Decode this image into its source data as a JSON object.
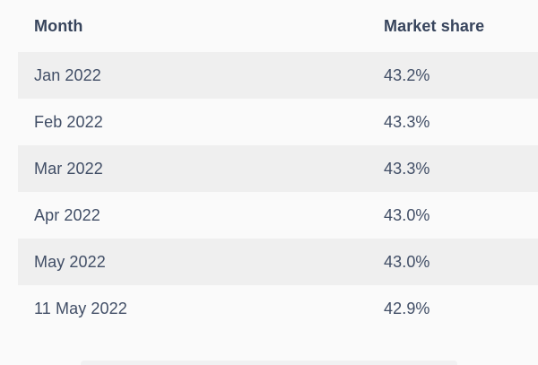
{
  "table": {
    "columns": [
      {
        "label": "Month"
      },
      {
        "label": "Market share"
      }
    ],
    "rows": [
      {
        "month": "Jan 2022",
        "share": "43.2%"
      },
      {
        "month": "Feb 2022",
        "share": "43.3%"
      },
      {
        "month": "Mar 2022",
        "share": "43.3%"
      },
      {
        "month": "Apr 2022",
        "share": "43.0%"
      },
      {
        "month": "May 2022",
        "share": "43.0%"
      },
      {
        "month": "11 May 2022",
        "share": "42.9%"
      }
    ]
  },
  "colors": {
    "page_bg": "#fafafa",
    "row_stripe": "#efefef",
    "header_text": "#37445c",
    "cell_text": "#414e66",
    "partial_bottom_element": "#f1f1f2"
  },
  "chart_data": {
    "type": "table",
    "title": "",
    "columns": [
      "Month",
      "Market share"
    ],
    "categories": [
      "Jan 2022",
      "Feb 2022",
      "Mar 2022",
      "Apr 2022",
      "May 2022",
      "11 May 2022"
    ],
    "values": [
      43.2,
      43.3,
      43.3,
      43.0,
      43.0,
      42.9
    ],
    "value_unit": "%",
    "xlabel": "Month",
    "ylabel": "Market share",
    "layout": "striped-rows, header top, no gridlines, no borders"
  }
}
